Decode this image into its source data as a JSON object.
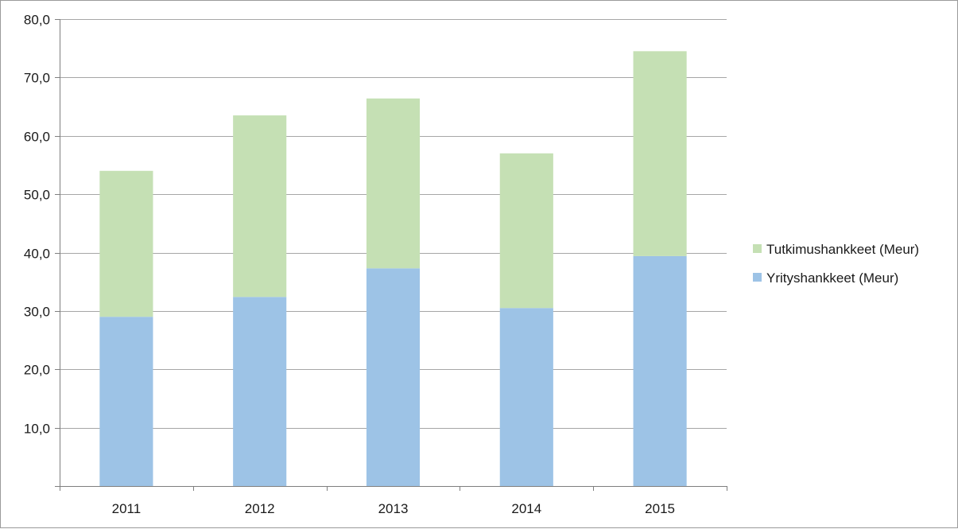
{
  "chart_data": {
    "type": "bar",
    "stacked": true,
    "categories": [
      "2011",
      "2012",
      "2013",
      "2014",
      "2015"
    ],
    "series": [
      {
        "name": "Yrityshankkeet (Meur)",
        "values": [
          29.0,
          32.4,
          37.3,
          30.5,
          39.4
        ],
        "color": "#9dc3e6"
      },
      {
        "name": "Tutkimushankkeet (Meur)",
        "values": [
          25.0,
          31.1,
          29.1,
          26.5,
          35.1
        ],
        "color": "#c5e0b4"
      }
    ],
    "title": "",
    "xlabel": "",
    "ylabel": "",
    "ylim": [
      0,
      80
    ],
    "yticks": [
      "10,0",
      "20,0",
      "30,0",
      "40,0",
      "50,0",
      "60,0",
      "70,0",
      "80,0"
    ],
    "ytick_values": [
      10,
      20,
      30,
      40,
      50,
      60,
      70,
      80
    ],
    "grid": true,
    "legend_position": "right",
    "legend_order": [
      "Tutkimushankkeet (Meur)",
      "Yrityshankkeet (Meur)"
    ],
    "gridline_color": "#a6a6a6"
  }
}
